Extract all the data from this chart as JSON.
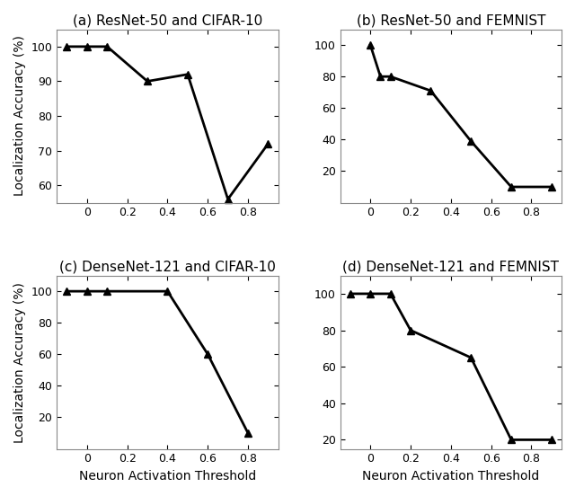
{
  "subplots": [
    {
      "title": "(a) ResNet-50 and CIFAR-10",
      "x": [
        -0.1,
        0.0,
        0.1,
        0.3,
        0.5,
        0.7,
        0.9
      ],
      "y": [
        100,
        100,
        100,
        90,
        92,
        56,
        72
      ],
      "ylim": [
        55,
        105
      ],
      "yticks": [
        60,
        70,
        80,
        90,
        100
      ],
      "xticks": [
        0.0,
        0.2,
        0.4,
        0.6,
        0.8
      ],
      "ylabel": true,
      "xlabel": false
    },
    {
      "title": "(b) ResNet-50 and FEMNIST",
      "x": [
        0.0,
        0.05,
        0.1,
        0.3,
        0.5,
        0.7,
        0.9
      ],
      "y": [
        100,
        80,
        80,
        71,
        39,
        10,
        10
      ],
      "ylim": [
        0,
        110
      ],
      "yticks": [
        20,
        40,
        60,
        80,
        100
      ],
      "xticks": [
        0.0,
        0.2,
        0.4,
        0.6,
        0.8
      ],
      "ylabel": false,
      "xlabel": false
    },
    {
      "title": "(c) DenseNet-121 and CIFAR-10",
      "x": [
        -0.1,
        0.0,
        0.1,
        0.4,
        0.6,
        0.8
      ],
      "y": [
        100,
        100,
        100,
        100,
        60,
        10
      ],
      "ylim": [
        0,
        110
      ],
      "yticks": [
        20,
        40,
        60,
        80,
        100
      ],
      "xticks": [
        0.0,
        0.2,
        0.4,
        0.6,
        0.8
      ],
      "ylabel": true,
      "xlabel": true
    },
    {
      "title": "(d) DenseNet-121 and FEMNIST",
      "x": [
        -0.1,
        0.0,
        0.1,
        0.2,
        0.5,
        0.7,
        0.9
      ],
      "y": [
        100,
        100,
        100,
        80,
        65,
        20,
        20
      ],
      "ylim": [
        15,
        110
      ],
      "yticks": [
        20,
        40,
        60,
        80,
        100
      ],
      "xticks": [
        0.0,
        0.2,
        0.4,
        0.6,
        0.8
      ],
      "ylabel": false,
      "xlabel": true
    }
  ],
  "line_color": "#000000",
  "marker": "^",
  "markersize": 6,
  "linewidth": 2.0,
  "ylabel_text": "Localization Accuracy (%)",
  "xlabel_text": "Neuron Activation Threshold",
  "title_fontsize": 11,
  "label_fontsize": 10,
  "tick_fontsize": 9,
  "background_color": "#ffffff",
  "hspace": 0.42,
  "wspace": 0.28
}
